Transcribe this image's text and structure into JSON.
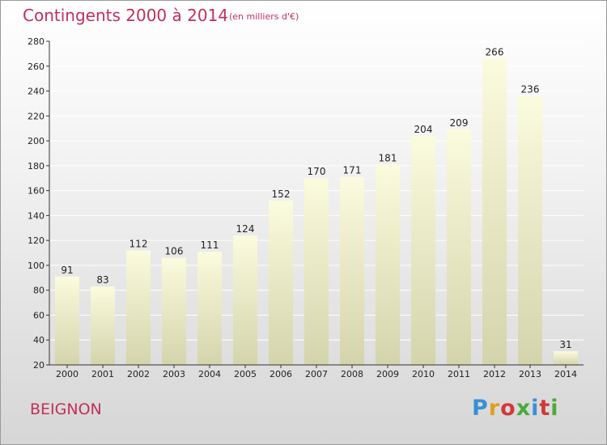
{
  "header": {
    "title": "Contingents 2000 à 2014",
    "subtitle": "(en milliers d'€)"
  },
  "footer": {
    "commune": "BEIGNON",
    "logo_text": "Proxiti",
    "logo_colors": [
      "#3a8fd6",
      "#e0a020",
      "#d03a3a",
      "#4aaa3a",
      "#3a8fd6",
      "#d03a3a",
      "#4aaa3a"
    ]
  },
  "colors": {
    "bar_top": "#fbfbde",
    "bar_bottom": "#d4d4ac",
    "grid": "#ffffff",
    "axis": "#333333"
  },
  "chart_data": {
    "type": "bar",
    "categories": [
      "2000",
      "2001",
      "2002",
      "2003",
      "2004",
      "2005",
      "2006",
      "2007",
      "2008",
      "2009",
      "2010",
      "2011",
      "2012",
      "2013",
      "2014"
    ],
    "values": [
      91,
      83,
      112,
      106,
      111,
      124,
      152,
      170,
      171,
      181,
      204,
      209,
      266,
      236,
      31
    ],
    "data_labels": [
      "91",
      "83",
      "112",
      "106",
      "111",
      "124",
      "152",
      "170",
      "171",
      "181",
      "204",
      "209",
      "266",
      "236",
      "31"
    ],
    "title": "Contingents 2000 à 2014",
    "subtitle": "(en milliers d'€)",
    "xlabel": "",
    "ylabel": "",
    "ylim": [
      20,
      280
    ],
    "yticks": [
      20,
      40,
      60,
      80,
      100,
      120,
      140,
      160,
      180,
      200,
      220,
      240,
      260,
      280
    ],
    "grid": true
  }
}
